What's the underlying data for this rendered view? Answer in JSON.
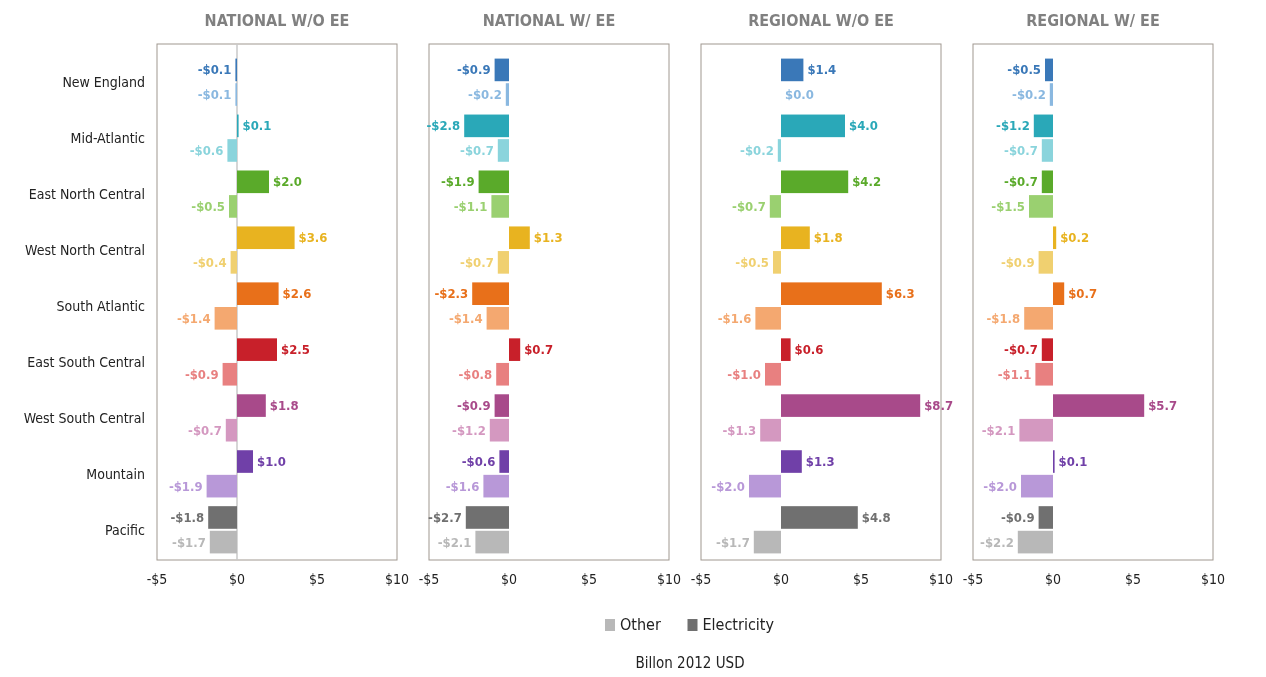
{
  "chart_data": [
    {
      "type": "bar",
      "orientation": "horizontal",
      "title": "NATIONAL W/O EE",
      "categories": [
        "New England",
        "Mid-Atlantic",
        "East North Central",
        "West North Central",
        "South Atlantic",
        "East South Central",
        "West South Central",
        "Mountain",
        "Pacific"
      ],
      "xlim": [
        -5,
        10
      ],
      "xticks": [
        {
          "value": -5,
          "label": "-$5"
        },
        {
          "value": 0,
          "label": "$0"
        },
        {
          "value": 5,
          "label": "$5"
        },
        {
          "value": 10,
          "label": "$10"
        }
      ],
      "ref_lines": [
        {
          "axis": "x",
          "value": 0,
          "color": "#c8c8c8"
        }
      ],
      "series": [
        {
          "colors": [
            "#8ab8e0",
            "#8ad4dc",
            "#9ad070",
            "#f0d070",
            "#f4a870",
            "#e88080",
            "#d498c0",
            "#b898d8",
            "#b8b8b8"
          ],
          "values": [
            -0.1,
            -0.6,
            -0.5,
            -0.4,
            -1.4,
            -0.9,
            -0.7,
            -1.9,
            -1.7
          ],
          "value_labels": [
            "-$0.1",
            "-$0.6",
            "-$0.5",
            "-$0.4",
            "-$1.4",
            "-$0.9",
            "-$0.7",
            "-$1.9",
            "-$1.7"
          ]
        },
        {
          "colors": [
            "#3a78b8",
            "#2aa8b8",
            "#5aaa2a",
            "#e8b320",
            "#e8701a",
            "#c8202a",
            "#a84a8a",
            "#7040a8",
            "#707070"
          ],
          "values": [
            -0.1,
            0.1,
            2.0,
            3.6,
            2.6,
            2.5,
            1.8,
            1.0,
            -1.8
          ],
          "value_labels": [
            "-$0.1",
            "$0.1",
            "$2.0",
            "$3.6",
            "$2.6",
            "$2.5",
            "$1.8",
            "$1.0",
            "-$1.8"
          ]
        }
      ]
    },
    {
      "type": "bar",
      "orientation": "horizontal",
      "title": "NATIONAL W/ EE",
      "xlabel": "Billon 2012 USD",
      "legend": "bottom",
      "tick_labels": "x",
      "categories": [
        null,
        null,
        null,
        null,
        null,
        null,
        null,
        null,
        null
      ],
      "xlim": [
        -5,
        10
      ],
      "xticks": [
        {
          "value": -5,
          "label": "-$5"
        },
        {
          "value": 0,
          "label": "$0"
        },
        {
          "value": 5,
          "label": "$5"
        },
        {
          "value": 10,
          "label": "$10"
        }
      ],
      "series": [
        {
          "name": "Other",
          "color": "#b8b8b8",
          "colors": [
            "#8ab8e0",
            "#8ad4dc",
            "#9ad070",
            "#f0d070",
            "#f4a870",
            "#e88080",
            "#d498c0",
            "#b898d8",
            "#b8b8b8"
          ],
          "values": [
            -0.2,
            -0.7,
            -1.1,
            -0.7,
            -1.4,
            -0.8,
            -1.2,
            -1.6,
            -2.1
          ],
          "value_labels": [
            "-$0.2",
            "-$0.7",
            "-$1.1",
            "-$0.7",
            "-$1.4",
            "-$0.8",
            "-$1.2",
            "-$1.6",
            "-$2.1"
          ]
        },
        {
          "name": "Electricity",
          "color": "#707070",
          "colors": [
            "#3a78b8",
            "#2aa8b8",
            "#5aaa2a",
            "#e8b320",
            "#e8701a",
            "#c8202a",
            "#a84a8a",
            "#7040a8",
            "#707070"
          ],
          "values": [
            -0.9,
            -2.8,
            -1.9,
            1.3,
            -2.3,
            0.7,
            -0.9,
            -0.6,
            -2.7
          ],
          "value_labels": [
            "-$0.9",
            "-$2.8",
            "-$1.9",
            "$1.3",
            "-$2.3",
            "$0.7",
            "-$0.9",
            "-$0.6",
            "-$2.7"
          ]
        }
      ]
    },
    {
      "type": "bar",
      "orientation": "horizontal",
      "title": "REGIONAL W/O EE",
      "tick_labels": "x",
      "categories": [
        null,
        null,
        null,
        null,
        null,
        null,
        null,
        null,
        null
      ],
      "xlim": [
        -5,
        10
      ],
      "xticks": [
        {
          "value": -5,
          "label": "-$5"
        },
        {
          "value": 0,
          "label": "$0"
        },
        {
          "value": 5,
          "label": "$5"
        },
        {
          "value": 10,
          "label": "$10"
        }
      ],
      "series": [
        {
          "colors": [
            "#8ab8e0",
            "#8ad4dc",
            "#9ad070",
            "#f0d070",
            "#f4a870",
            "#e88080",
            "#d498c0",
            "#b898d8",
            "#b8b8b8"
          ],
          "values": [
            0.0,
            -0.2,
            -0.7,
            -0.5,
            -1.6,
            -1.0,
            -1.3,
            -2.0,
            -1.7
          ],
          "value_labels": [
            "$0.0",
            "-$0.2",
            "-$0.7",
            "-$0.5",
            "-$1.6",
            "-$1.0",
            "-$1.3",
            "-$2.0",
            "-$1.7"
          ]
        },
        {
          "colors": [
            "#3a78b8",
            "#2aa8b8",
            "#5aaa2a",
            "#e8b320",
            "#e8701a",
            "#c8202a",
            "#a84a8a",
            "#7040a8",
            "#707070"
          ],
          "values": [
            1.4,
            4.0,
            4.2,
            1.8,
            6.3,
            0.6,
            8.7,
            1.3,
            4.8
          ],
          "value_labels": [
            "$1.4",
            "$4.0",
            "$4.2",
            "$1.8",
            "$6.3",
            "$0.6",
            "$8.7",
            "$1.3",
            "$4.8"
          ]
        }
      ]
    },
    {
      "type": "bar",
      "orientation": "horizontal",
      "title": "REGIONAL W/ EE",
      "tick_labels": "x",
      "categories": [
        null,
        null,
        null,
        null,
        null,
        null,
        null,
        null,
        null
      ],
      "xlim": [
        -5,
        10
      ],
      "xticks": [
        {
          "value": -5,
          "label": "-$5"
        },
        {
          "value": 0,
          "label": "$0"
        },
        {
          "value": 5,
          "label": "$5"
        },
        {
          "value": 10,
          "label": "$10"
        }
      ],
      "series": [
        {
          "colors": [
            "#8ab8e0",
            "#8ad4dc",
            "#9ad070",
            "#f0d070",
            "#f4a870",
            "#e88080",
            "#d498c0",
            "#b898d8",
            "#b8b8b8"
          ],
          "values": [
            -0.2,
            -0.7,
            -1.5,
            -0.9,
            -1.8,
            -1.1,
            -2.1,
            -2.0,
            -2.2
          ],
          "value_labels": [
            "-$0.2",
            "-$0.7",
            "-$1.5",
            "-$0.9",
            "-$1.8",
            "-$1.1",
            "-$2.1",
            "-$2.0",
            "-$2.2"
          ]
        },
        {
          "colors": [
            "#3a78b8",
            "#2aa8b8",
            "#5aaa2a",
            "#e8b320",
            "#e8701a",
            "#c8202a",
            "#a84a8a",
            "#7040a8",
            "#707070"
          ],
          "values": [
            -0.5,
            -1.2,
            -0.7,
            0.2,
            0.7,
            -0.7,
            5.7,
            0.1,
            -0.9
          ],
          "value_labels": [
            "-$0.5",
            "-$1.2",
            "-$0.7",
            "$0.2",
            "$0.7",
            "-$0.7",
            "$5.7",
            "$0.1",
            "-$0.9"
          ]
        }
      ]
    }
  ]
}
